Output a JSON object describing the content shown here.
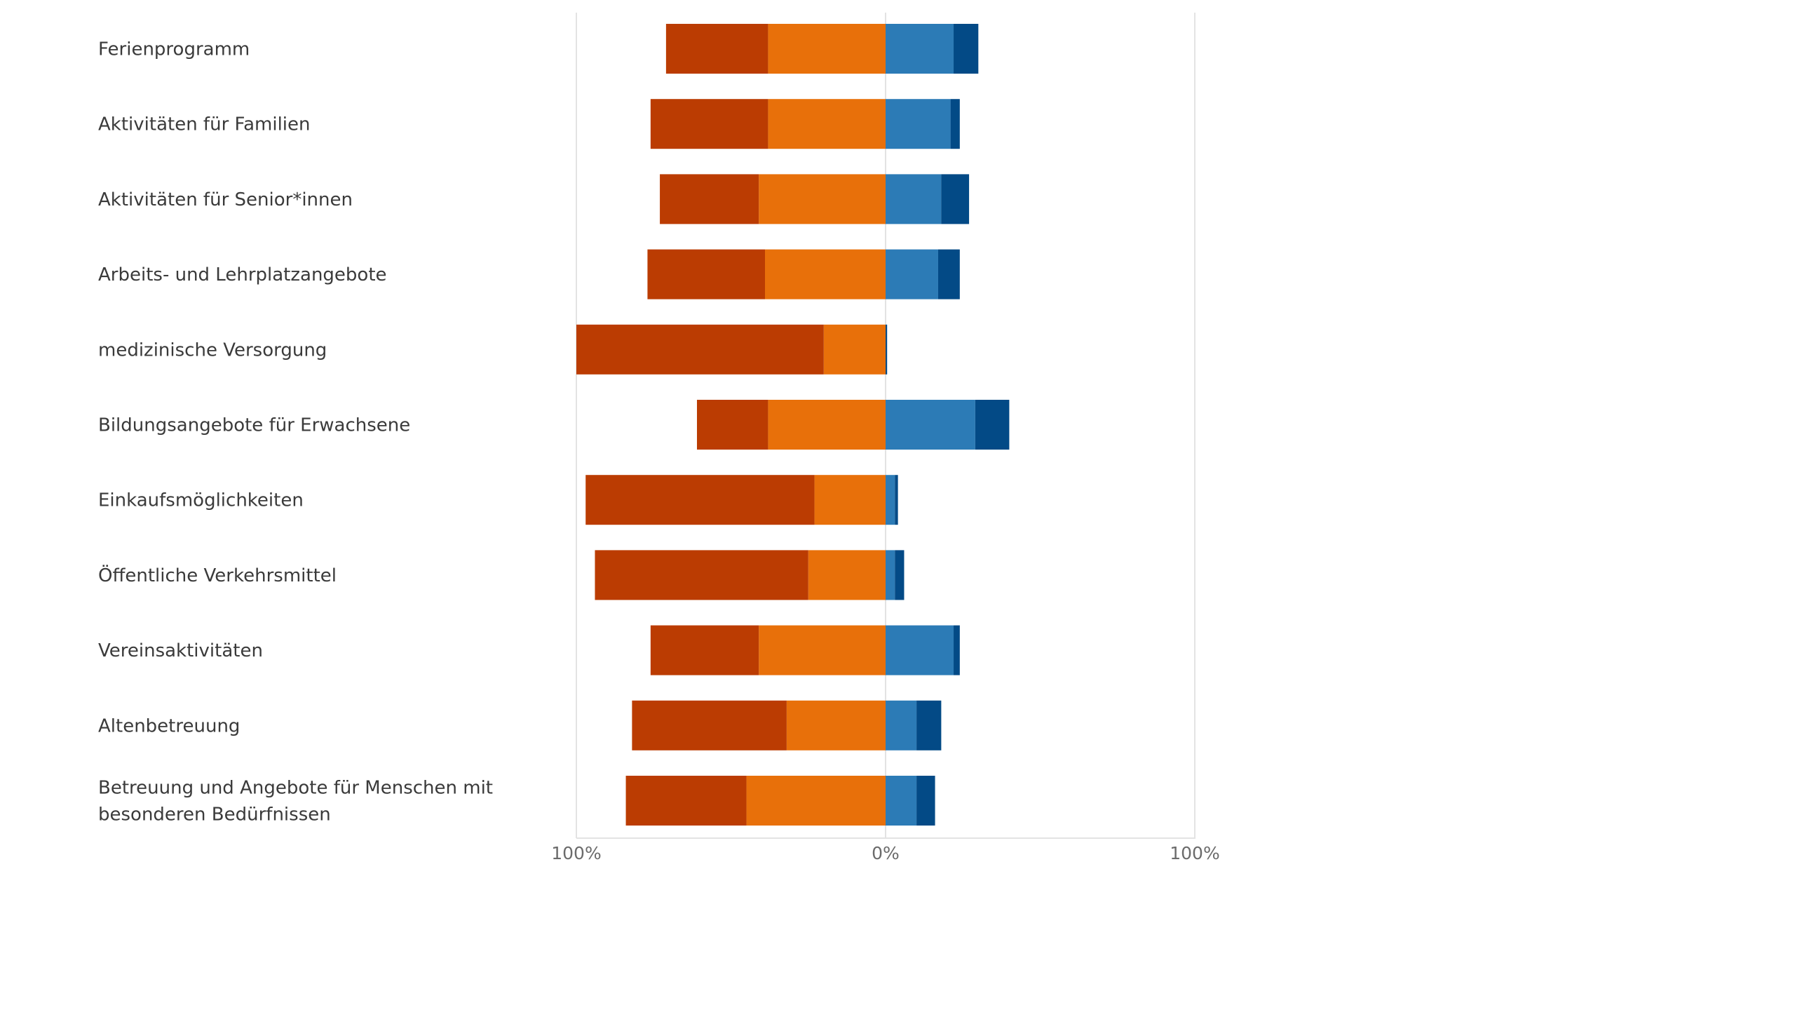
{
  "chart_data": {
    "type": "bar",
    "orientation": "horizontal",
    "layout": "diverging-stacked",
    "title": "",
    "xlabel": "",
    "ylabel": "",
    "xlim": [
      -100,
      100
    ],
    "xticks": [
      -100,
      0,
      100
    ],
    "xtick_labels": [
      "100%",
      "0%",
      "100%"
    ],
    "grid": true,
    "legend": "none",
    "categories": [
      [
        "Ferienprogramm"
      ],
      [
        "Aktivitäten für Familien"
      ],
      [
        "Aktivitäten für Senior*innen"
      ],
      [
        "Arbeits- und Lehrplatzangebote"
      ],
      [
        "medizinische Versorgung"
      ],
      [
        "Bildungsangebote für Erwachsene"
      ],
      [
        "Einkaufsmöglichkeiten"
      ],
      [
        "Öffentliche Verkehrsmittel"
      ],
      [
        "Vereinsaktivitäten"
      ],
      [
        "Altenbetreuung"
      ],
      [
        "Betreuung und Angebote für Menschen mit",
        "besonderen Bedürfnissen"
      ]
    ],
    "series": [
      {
        "color": "#bb3c02",
        "side": "negative",
        "values": [
          33,
          38,
          32,
          38,
          80,
          23,
          74,
          69,
          35,
          50,
          39
        ]
      },
      {
        "color": "#e8700a",
        "side": "negative",
        "values": [
          38,
          38,
          41,
          39,
          20,
          38,
          23,
          25,
          41,
          32,
          45
        ]
      },
      {
        "color": "#2c7bb6",
        "side": "positive",
        "values": [
          22,
          21,
          18,
          17,
          0,
          29,
          3,
          3,
          22,
          10,
          10
        ]
      },
      {
        "color": "#034a86",
        "side": "positive",
        "values": [
          8,
          3,
          9,
          7,
          0.5,
          11,
          1,
          3,
          2,
          8,
          6
        ]
      }
    ]
  }
}
